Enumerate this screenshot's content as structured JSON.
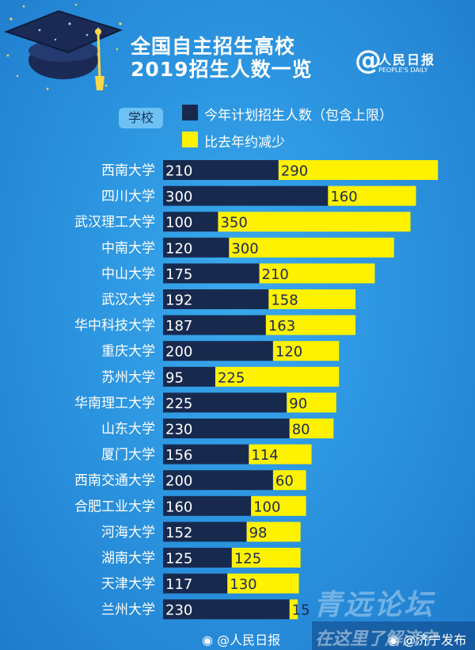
{
  "header": {
    "title_line1": "全国自主招生高校",
    "title_line2": "2019招生人数一览",
    "brand_symbol": "@",
    "brand_name": "人民日报",
    "brand_sub": "PEOPLE'S DAILY"
  },
  "legend": {
    "tag": "学校",
    "items": [
      {
        "label": "今年计划招生人数（包含上限）",
        "color": "#172a4e"
      },
      {
        "label": "比去年约减少",
        "color": "#fff200"
      }
    ]
  },
  "colors": {
    "plan": "#172a4e",
    "reduce": "#fff200",
    "background": "#2c95e0"
  },
  "chart_data": {
    "type": "bar",
    "stacked": true,
    "orientation": "horizontal",
    "categories": [
      "西南大学",
      "四川大学",
      "武汉理工大学",
      "中南大学",
      "中山大学",
      "武汉大学",
      "华中科技大学",
      "重庆大学",
      "苏州大学",
      "华南理工大学",
      "山东大学",
      "厦门大学",
      "西南交通大学",
      "合肥工业大学",
      "河海大学",
      "湖南大学",
      "天津大学",
      "兰州大学"
    ],
    "series": [
      {
        "name": "今年计划招生人数（包含上限）",
        "values": [
          210,
          300,
          100,
          120,
          175,
          192,
          187,
          200,
          95,
          225,
          230,
          156,
          200,
          160,
          152,
          125,
          117,
          230
        ]
      },
      {
        "name": "比去年约减少",
        "values": [
          290,
          160,
          350,
          300,
          210,
          158,
          163,
          120,
          225,
          90,
          80,
          114,
          60,
          100,
          98,
          125,
          130,
          15
        ]
      }
    ],
    "legend_position": "top",
    "grid": false
  },
  "footer": {
    "left_icon": "weibo-icon",
    "left": "@人民日报",
    "right_icon": "weibo-icon",
    "right": "@济宁发布"
  },
  "watermark": {
    "line1": "青远论坛",
    "line2": "在这里了解济宁"
  }
}
